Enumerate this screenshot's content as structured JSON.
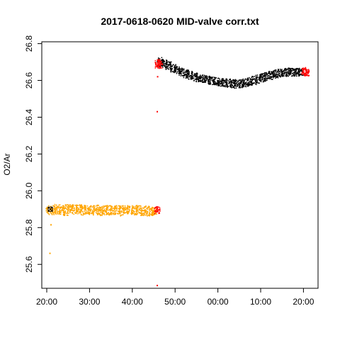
{
  "chart_data": {
    "type": "scatter",
    "title": "2017-0618-0620 MID-valve corr.txt",
    "xlabel": "",
    "ylabel": "O2/Ar",
    "x_tick_labels": [
      "20:00",
      "30:00",
      "40:00",
      "50:00",
      "00:00",
      "10:00",
      "20:00"
    ],
    "y_ticks": [
      25.6,
      25.8,
      26.0,
      26.2,
      26.4,
      26.6,
      26.8
    ],
    "y_tick_labels": [
      "25.6",
      "25.8",
      "26.0",
      "26.2",
      "26.4",
      "26.6",
      "26.8"
    ],
    "ylim": [
      25.47,
      26.81
    ],
    "grid": false,
    "series": [
      {
        "color": "#ffa500",
        "groups": [
          {
            "x": "20:30",
            "center": 25.895,
            "spread": 0.05
          },
          {
            "x": "21:30",
            "center": 25.895,
            "spread": 0.05
          },
          {
            "x": "22:30",
            "center": 25.9,
            "spread": 0.055
          },
          {
            "x": "23:30",
            "center": 25.895,
            "spread": 0.05
          },
          {
            "x": "24:30",
            "center": 25.895,
            "spread": 0.06
          },
          {
            "x": "25:30",
            "center": 25.9,
            "spread": 0.05
          },
          {
            "x": "26:30",
            "center": 25.9,
            "spread": 0.055
          },
          {
            "x": "27:30",
            "center": 25.9,
            "spread": 0.05
          },
          {
            "x": "28:30",
            "center": 25.895,
            "spread": 0.055
          },
          {
            "x": "29:30",
            "center": 25.9,
            "spread": 0.05
          },
          {
            "x": "30:30",
            "center": 25.895,
            "spread": 0.05
          },
          {
            "x": "31:30",
            "center": 25.895,
            "spread": 0.055
          },
          {
            "x": "32:30",
            "center": 25.89,
            "spread": 0.05
          },
          {
            "x": "33:30",
            "center": 25.895,
            "spread": 0.05
          },
          {
            "x": "34:30",
            "center": 25.895,
            "spread": 0.055
          },
          {
            "x": "35:30",
            "center": 25.895,
            "spread": 0.05
          },
          {
            "x": "36:30",
            "center": 25.895,
            "spread": 0.05
          },
          {
            "x": "37:30",
            "center": 25.89,
            "spread": 0.055
          },
          {
            "x": "38:30",
            "center": 25.895,
            "spread": 0.05
          },
          {
            "x": "39:30",
            "center": 25.895,
            "spread": 0.05
          },
          {
            "x": "40:30",
            "center": 25.895,
            "spread": 0.055
          },
          {
            "x": "41:30",
            "center": 25.895,
            "spread": 0.05
          },
          {
            "x": "42:30",
            "center": 25.89,
            "spread": 0.05
          },
          {
            "x": "43:30",
            "center": 25.89,
            "spread": 0.055
          },
          {
            "x": "44:30",
            "center": 25.89,
            "spread": 0.05
          },
          {
            "x": "45:10",
            "center": 25.89,
            "spread": 0.04
          }
        ],
        "points": [
          {
            "x": "20:45",
            "y": 25.66
          },
          {
            "x": "21:00",
            "y": 25.815
          }
        ]
      },
      {
        "color": "#000000",
        "groups": [
          {
            "x": "46:30",
            "center": 26.7,
            "spread": 0.05
          },
          {
            "x": "47:30",
            "center": 26.69,
            "spread": 0.045
          },
          {
            "x": "48:30",
            "center": 26.68,
            "spread": 0.045
          },
          {
            "x": "49:30",
            "center": 26.665,
            "spread": 0.045
          },
          {
            "x": "50:30",
            "center": 26.655,
            "spread": 0.04
          },
          {
            "x": "51:30",
            "center": 26.645,
            "spread": 0.045
          },
          {
            "x": "52:30",
            "center": 26.635,
            "spread": 0.045
          },
          {
            "x": "53:30",
            "center": 26.628,
            "spread": 0.045
          },
          {
            "x": "54:30",
            "center": 26.62,
            "spread": 0.045
          },
          {
            "x": "55:30",
            "center": 26.615,
            "spread": 0.045
          },
          {
            "x": "56:30",
            "center": 26.608,
            "spread": 0.045
          },
          {
            "x": "57:30",
            "center": 26.603,
            "spread": 0.045
          },
          {
            "x": "58:30",
            "center": 26.6,
            "spread": 0.045
          },
          {
            "x": "59:30",
            "center": 26.595,
            "spread": 0.045
          },
          {
            "x": "00:30",
            "center": 26.59,
            "spread": 0.045
          },
          {
            "x": "01:30",
            "center": 26.588,
            "spread": 0.045
          },
          {
            "x": "02:30",
            "center": 26.585,
            "spread": 0.045
          },
          {
            "x": "03:30",
            "center": 26.582,
            "spread": 0.045
          },
          {
            "x": "04:30",
            "center": 26.58,
            "spread": 0.05
          },
          {
            "x": "05:30",
            "center": 26.582,
            "spread": 0.045
          },
          {
            "x": "06:30",
            "center": 26.588,
            "spread": 0.045
          },
          {
            "x": "07:30",
            "center": 26.595,
            "spread": 0.045
          },
          {
            "x": "08:30",
            "center": 26.6,
            "spread": 0.045
          },
          {
            "x": "09:30",
            "center": 26.608,
            "spread": 0.045
          },
          {
            "x": "10:30",
            "center": 26.615,
            "spread": 0.045
          },
          {
            "x": "11:30",
            "center": 26.622,
            "spread": 0.045
          },
          {
            "x": "12:30",
            "center": 26.628,
            "spread": 0.045
          },
          {
            "x": "13:30",
            "center": 26.635,
            "spread": 0.045
          },
          {
            "x": "14:30",
            "center": 26.64,
            "spread": 0.045
          },
          {
            "x": "15:30",
            "center": 26.643,
            "spread": 0.045
          },
          {
            "x": "16:30",
            "center": 26.645,
            "spread": 0.045
          },
          {
            "x": "17:30",
            "center": 26.645,
            "spread": 0.045
          },
          {
            "x": "18:30",
            "center": 26.645,
            "spread": 0.045
          },
          {
            "x": "19:15",
            "center": 26.645,
            "spread": 0.04
          }
        ],
        "points": []
      },
      {
        "color": "#ff0000",
        "groups": [
          {
            "x": "45:50",
            "center": 25.895,
            "spread": 0.04
          },
          {
            "x": "46:00",
            "center": 26.69,
            "spread": 0.05
          },
          {
            "x": "46:20",
            "center": 26.69,
            "spread": 0.045
          },
          {
            "x": "20:15",
            "center": 26.648,
            "spread": 0.045
          },
          {
            "x": "20:40",
            "center": 26.645,
            "spread": 0.04
          }
        ],
        "points": [
          {
            "x": "45:50",
            "y": 26.43
          },
          {
            "x": "45:50",
            "y": 25.485
          },
          {
            "x": "45:55",
            "y": 26.62
          }
        ]
      }
    ],
    "marker": {
      "x": "20:50",
      "y": 25.9,
      "shape": "boxed-x"
    }
  }
}
